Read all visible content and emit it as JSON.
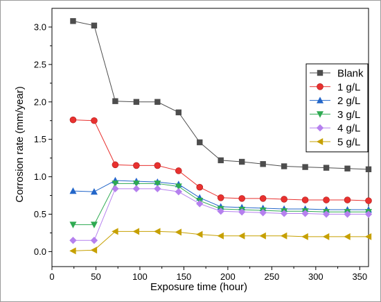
{
  "chart_data": {
    "type": "line",
    "title": "",
    "xlabel": "Exposure time (hour)",
    "ylabel": "Corrosion rate (mm/year)",
    "xlim": [
      0,
      360
    ],
    "ylim": [
      -0.2,
      3.25
    ],
    "xticks": [
      0,
      50,
      100,
      150,
      200,
      250,
      300,
      350
    ],
    "yticks": [
      0.0,
      0.5,
      1.0,
      1.5,
      2.0,
      2.5,
      3.0
    ],
    "xtick_labels": [
      "0",
      "50",
      "100",
      "150",
      "200",
      "250",
      "300",
      "350"
    ],
    "ytick_labels": [
      "0.0",
      "0.5",
      "1.0",
      "1.5",
      "2.0",
      "2.5",
      "3.0"
    ],
    "grid": false,
    "legend_position": "right",
    "x": [
      24,
      48,
      72,
      96,
      120,
      144,
      168,
      192,
      216,
      240,
      264,
      288,
      312,
      336,
      360
    ],
    "series": [
      {
        "name": "Blank",
        "color": "#4d4d4d",
        "marker": "square",
        "values": [
          3.08,
          3.02,
          2.01,
          2.0,
          2.0,
          1.86,
          1.46,
          1.22,
          1.2,
          1.17,
          1.14,
          1.13,
          1.12,
          1.11,
          1.1
        ]
      },
      {
        "name": "1 g/L",
        "color": "#e8312f",
        "marker": "circle",
        "values": [
          1.76,
          1.75,
          1.16,
          1.15,
          1.15,
          1.08,
          0.86,
          0.72,
          0.71,
          0.71,
          0.7,
          0.69,
          0.69,
          0.69,
          0.68
        ]
      },
      {
        "name": "2 g/L",
        "color": "#2366c9",
        "marker": "triangle-up",
        "values": [
          0.81,
          0.8,
          0.95,
          0.94,
          0.93,
          0.9,
          0.72,
          0.6,
          0.59,
          0.58,
          0.57,
          0.57,
          0.56,
          0.56,
          0.56
        ]
      },
      {
        "name": "3 g/L",
        "color": "#2eaa52",
        "marker": "triangle-down",
        "values": [
          0.36,
          0.36,
          0.91,
          0.91,
          0.91,
          0.87,
          0.68,
          0.57,
          0.56,
          0.55,
          0.54,
          0.54,
          0.53,
          0.53,
          0.53
        ]
      },
      {
        "name": "4 g/L",
        "color": "#b580ee",
        "marker": "diamond",
        "values": [
          0.15,
          0.15,
          0.84,
          0.84,
          0.84,
          0.8,
          0.64,
          0.54,
          0.53,
          0.52,
          0.51,
          0.51,
          0.5,
          0.5,
          0.5
        ]
      },
      {
        "name": "5 g/L",
        "color": "#c6a000",
        "marker": "triangle-left",
        "values": [
          0.01,
          0.02,
          0.27,
          0.27,
          0.27,
          0.26,
          0.23,
          0.21,
          0.21,
          0.21,
          0.21,
          0.2,
          0.2,
          0.2,
          0.2
        ]
      }
    ]
  }
}
